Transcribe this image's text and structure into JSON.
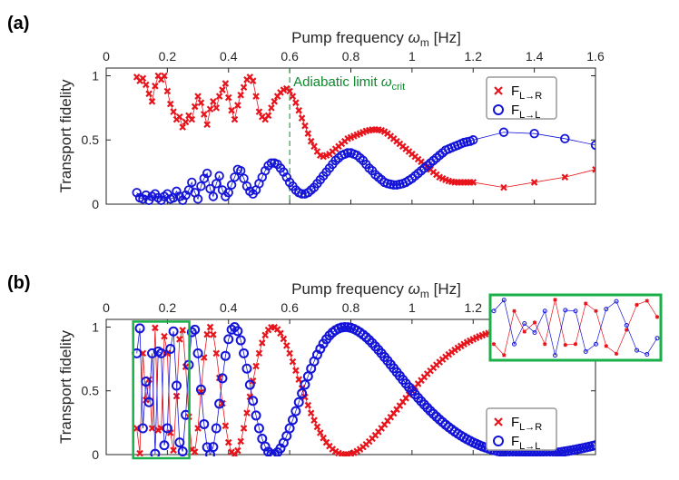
{
  "colors": {
    "red": "#e8141c",
    "blue": "#1414d8",
    "green": "#0a8a2a",
    "inset_border": "#19b04a",
    "axis": "#262626"
  },
  "chart_data": [
    {
      "panel": "(a)",
      "type": "scatter",
      "title": "Pump frequency ωm [Hz]",
      "xlabel_main": "Pump frequency ",
      "xlabel_sym": "ω",
      "xlabel_sub": "m",
      "xlabel_unit": " [Hz]",
      "ylabel": "Transport fidelity",
      "xlim": [
        0,
        1.6
      ],
      "ylim": [
        0,
        1.06
      ],
      "xticks": [
        "0",
        "0.2",
        "0.4",
        "0.6",
        "0.8",
        "1",
        "1.2",
        "1.4",
        "1.6"
      ],
      "xtick_values": [
        0,
        0.2,
        0.4,
        0.6,
        0.8,
        1.0,
        1.2,
        1.4,
        1.6
      ],
      "yticks": [
        "0",
        "0.5",
        "1"
      ],
      "ytick_values": [
        0,
        0.5,
        1
      ],
      "x_axis_position": "top",
      "annotation": {
        "text_main": "Adiabatic limit ",
        "text_sym": "ω",
        "text_sub": "crit",
        "x": 0.6
      },
      "legend": {
        "placement": "top-right",
        "entries": [
          {
            "label": "F",
            "sub": "L→R",
            "marker": "x",
            "color": "#e8141c"
          },
          {
            "label": "F",
            "sub": "L→L",
            "marker": "o",
            "color": "#1414d8"
          }
        ]
      },
      "series": [
        {
          "name": "F_L→R",
          "color": "#e8141c",
          "marker": "x",
          "x": [
            0.1,
            0.11,
            0.12,
            0.13,
            0.14,
            0.15,
            0.16,
            0.17,
            0.18,
            0.19,
            0.2,
            0.21,
            0.22,
            0.23,
            0.24,
            0.25,
            0.26,
            0.27,
            0.28,
            0.29,
            0.3,
            0.31,
            0.32,
            0.33,
            0.34,
            0.35,
            0.36,
            0.37,
            0.38,
            0.39,
            0.4,
            0.41,
            0.42,
            0.43,
            0.44,
            0.45,
            0.46,
            0.47,
            0.48,
            0.49,
            0.5,
            0.51,
            0.52,
            0.53,
            0.54,
            0.55,
            0.56,
            0.57,
            0.58,
            0.59,
            0.6,
            0.61,
            0.62,
            0.63,
            0.64,
            0.65,
            0.66,
            0.67,
            0.68,
            0.69,
            0.7,
            0.71,
            0.72,
            0.73,
            0.74,
            0.75,
            0.76,
            0.77,
            0.78,
            0.79,
            0.8,
            0.81,
            0.82,
            0.83,
            0.84,
            0.85,
            0.86,
            0.87,
            0.88,
            0.89,
            0.9,
            0.91,
            0.92,
            0.93,
            0.94,
            0.95,
            0.96,
            0.97,
            0.98,
            0.99,
            1.0,
            1.01,
            1.02,
            1.03,
            1.04,
            1.05,
            1.06,
            1.07,
            1.08,
            1.09,
            1.1,
            1.11,
            1.12,
            1.13,
            1.14,
            1.15,
            1.16,
            1.17,
            1.18,
            1.19,
            1.2,
            1.3,
            1.4,
            1.5,
            1.6
          ],
          "y": [
            0.99,
            0.96,
            0.98,
            0.93,
            0.86,
            0.8,
            0.92,
            1.0,
            0.97,
            1.0,
            0.88,
            0.78,
            0.72,
            0.66,
            0.68,
            0.6,
            0.64,
            0.69,
            0.66,
            0.76,
            0.84,
            0.79,
            0.7,
            0.62,
            0.74,
            0.8,
            0.75,
            0.84,
            0.89,
            0.94,
            0.83,
            0.73,
            0.66,
            0.77,
            0.85,
            0.91,
            0.97,
            0.99,
            0.96,
            0.84,
            0.72,
            0.68,
            0.66,
            0.69,
            0.75,
            0.8,
            0.84,
            0.87,
            0.89,
            0.9,
            0.88,
            0.84,
            0.79,
            0.73,
            0.67,
            0.61,
            0.55,
            0.49,
            0.45,
            0.41,
            0.38,
            0.37,
            0.38,
            0.39,
            0.41,
            0.43,
            0.45,
            0.47,
            0.49,
            0.51,
            0.52,
            0.53,
            0.54,
            0.55,
            0.56,
            0.57,
            0.575,
            0.58,
            0.58,
            0.58,
            0.575,
            0.565,
            0.55,
            0.53,
            0.51,
            0.49,
            0.47,
            0.45,
            0.43,
            0.41,
            0.39,
            0.37,
            0.35,
            0.33,
            0.31,
            0.29,
            0.27,
            0.25,
            0.23,
            0.21,
            0.2,
            0.19,
            0.18,
            0.175,
            0.17,
            0.17,
            0.17,
            0.17,
            0.17,
            0.17,
            0.17,
            0.13,
            0.17,
            0.21,
            0.27
          ]
        },
        {
          "name": "F_L→L",
          "color": "#1414d8",
          "marker": "o",
          "x": [
            0.1,
            0.11,
            0.12,
            0.13,
            0.14,
            0.15,
            0.16,
            0.17,
            0.18,
            0.19,
            0.2,
            0.21,
            0.22,
            0.23,
            0.24,
            0.25,
            0.26,
            0.27,
            0.28,
            0.29,
            0.3,
            0.31,
            0.32,
            0.33,
            0.34,
            0.35,
            0.36,
            0.37,
            0.38,
            0.39,
            0.4,
            0.41,
            0.42,
            0.43,
            0.44,
            0.45,
            0.46,
            0.47,
            0.48,
            0.49,
            0.5,
            0.51,
            0.52,
            0.53,
            0.54,
            0.55,
            0.56,
            0.57,
            0.58,
            0.59,
            0.6,
            0.61,
            0.62,
            0.63,
            0.64,
            0.65,
            0.66,
            0.67,
            0.68,
            0.69,
            0.7,
            0.71,
            0.72,
            0.73,
            0.74,
            0.75,
            0.76,
            0.77,
            0.78,
            0.79,
            0.8,
            0.81,
            0.82,
            0.83,
            0.84,
            0.85,
            0.86,
            0.87,
            0.88,
            0.89,
            0.9,
            0.91,
            0.92,
            0.93,
            0.94,
            0.95,
            0.96,
            0.97,
            0.98,
            0.99,
            1.0,
            1.01,
            1.02,
            1.03,
            1.04,
            1.05,
            1.06,
            1.07,
            1.08,
            1.09,
            1.1,
            1.11,
            1.12,
            1.13,
            1.14,
            1.15,
            1.16,
            1.17,
            1.18,
            1.19,
            1.2,
            1.3,
            1.4,
            1.5,
            1.6
          ],
          "y": [
            0.09,
            0.05,
            0.04,
            0.07,
            0.03,
            0.06,
            0.08,
            0.05,
            0.03,
            0.06,
            0.08,
            0.04,
            0.05,
            0.1,
            0.06,
            0.03,
            0.07,
            0.11,
            0.17,
            0.09,
            0.04,
            0.14,
            0.2,
            0.24,
            0.12,
            0.06,
            0.16,
            0.22,
            0.11,
            0.06,
            0.09,
            0.15,
            0.21,
            0.27,
            0.26,
            0.2,
            0.14,
            0.1,
            0.08,
            0.11,
            0.16,
            0.21,
            0.26,
            0.3,
            0.32,
            0.32,
            0.31,
            0.28,
            0.25,
            0.21,
            0.17,
            0.14,
            0.11,
            0.09,
            0.08,
            0.08,
            0.09,
            0.11,
            0.13,
            0.16,
            0.19,
            0.22,
            0.25,
            0.28,
            0.31,
            0.34,
            0.36,
            0.38,
            0.39,
            0.4,
            0.4,
            0.39,
            0.38,
            0.36,
            0.34,
            0.31,
            0.28,
            0.26,
            0.23,
            0.21,
            0.19,
            0.17,
            0.16,
            0.155,
            0.15,
            0.15,
            0.155,
            0.16,
            0.17,
            0.185,
            0.2,
            0.22,
            0.24,
            0.26,
            0.28,
            0.3,
            0.32,
            0.34,
            0.36,
            0.38,
            0.4,
            0.42,
            0.43,
            0.44,
            0.45,
            0.46,
            0.47,
            0.48,
            0.485,
            0.49,
            0.5,
            0.56,
            0.55,
            0.51,
            0.46
          ]
        }
      ]
    },
    {
      "panel": "(b)",
      "type": "scatter",
      "title": "Pump frequency ωm [Hz]",
      "xlabel_main": "Pump frequency ",
      "xlabel_sym": "ω",
      "xlabel_sub": "m",
      "xlabel_unit": " [Hz]",
      "ylabel": "Transport fidelity",
      "xlim": [
        0,
        1.6
      ],
      "ylim": [
        0,
        1.06
      ],
      "xticks": [
        "0",
        "0.2",
        "0.4",
        "0.6",
        "0.8",
        "1",
        "1.2"
      ],
      "xtick_values": [
        0,
        0.2,
        0.4,
        0.6,
        0.8,
        1.0,
        1.2
      ],
      "yticks": [
        "0",
        "0.5",
        "1"
      ],
      "ytick_values": [
        0,
        0.5,
        1
      ],
      "x_axis_position": "top",
      "legend": {
        "placement": "bottom-right",
        "entries": [
          {
            "label": "F",
            "sub": "L→R",
            "marker": "x",
            "color": "#e8141c"
          },
          {
            "label": "F",
            "sub": "L→L",
            "marker": "o",
            "color": "#1414d8"
          }
        ]
      },
      "highlight_region": {
        "x_range": [
          0.1,
          0.26
        ],
        "y_range": [
          0.0,
          1.0
        ],
        "inset_placement": "top-right"
      },
      "series_model": {
        "description": "F_L→R = cos^2(phase), F_L→L = sin^2(phase), sampled densely",
        "x_start": 0.1,
        "x_end": 1.6,
        "x_step": 0.01
      }
    }
  ]
}
